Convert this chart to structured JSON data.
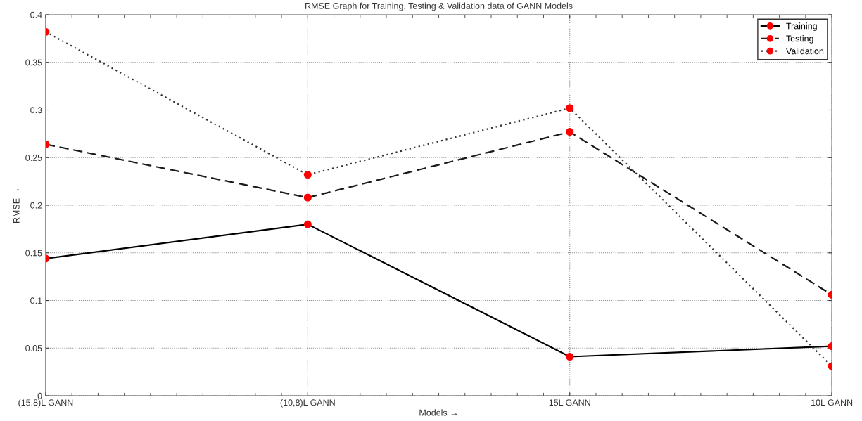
{
  "chart_data": {
    "type": "line",
    "title": "RMSE Graph for Training, Testing & Validation data of GANN Models",
    "xlabel": "Models →",
    "ylabel": "RMSE →",
    "categories": [
      "(15,8)L GANN",
      "(10,8)L GANN",
      "15L GANN",
      "10L GANN"
    ],
    "series": [
      {
        "name": "Training",
        "color": "#000000",
        "line_style": "solid",
        "colors": [
          "#ff0000",
          "#ff0000",
          "#ff0000",
          "#ff0000"
        ],
        "values": [
          0.144,
          0.18,
          0.041,
          0.052
        ]
      },
      {
        "name": "Testing",
        "color": "#1a1a1a",
        "line_style": "dashed",
        "colors": [
          "#ff0000",
          "#ff0000",
          "#ff0000",
          "#ff0000"
        ],
        "values": [
          0.264,
          0.208,
          0.277,
          0.106
        ]
      },
      {
        "name": "Validation",
        "color": "#333333",
        "line_style": "dotted",
        "colors": [
          "#ff0000",
          "#ff0000",
          "#ff0000",
          "#ff0000"
        ],
        "values": [
          0.382,
          0.232,
          0.302,
          0.031
        ]
      }
    ],
    "ylim": [
      0,
      0.4
    ],
    "yticks": [
      0,
      0.05,
      0.1,
      0.15,
      0.2,
      0.25,
      0.3,
      0.35,
      0.4
    ],
    "grid": true,
    "legend": "top right",
    "marker": "circle"
  }
}
